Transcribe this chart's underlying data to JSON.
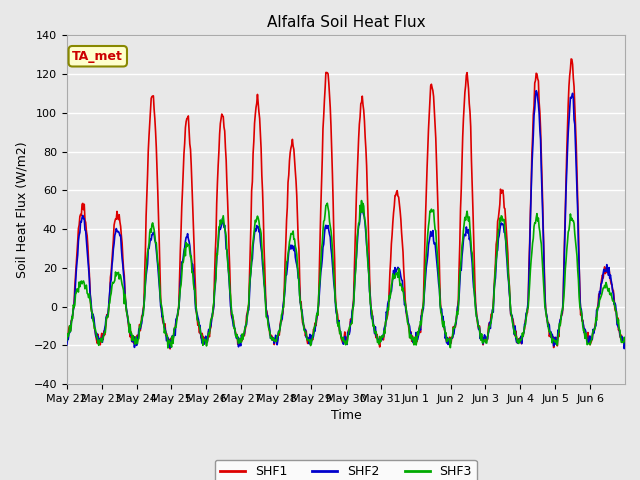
{
  "title": "Alfalfa Soil Heat Flux",
  "ylabel": "Soil Heat Flux (W/m2)",
  "xlabel": "Time",
  "ylim": [
    -40,
    140
  ],
  "annotation": "TA_met",
  "x_tick_labels": [
    "May 22",
    "May 23",
    "May 24",
    "May 25",
    "May 26",
    "May 27",
    "May 28",
    "May 29",
    "May 30",
    "May 31",
    "Jun 1",
    "Jun 2",
    "Jun 3",
    "Jun 4",
    "Jun 5",
    "Jun 6"
  ],
  "legend": [
    {
      "label": "SHF1",
      "color": "#dd0000"
    },
    {
      "label": "SHF2",
      "color": "#0000cc"
    },
    {
      "label": "SHF3",
      "color": "#00aa00"
    }
  ],
  "fig_facecolor": "#e8e8e8",
  "ax_facecolor": "#e8e8e8",
  "grid_color": "#ffffff",
  "shf1_day_peaks": [
    52,
    48,
    109,
    97,
    100,
    107,
    85,
    122,
    106,
    60,
    114,
    119,
    59,
    120,
    126,
    20
  ],
  "shf2_day_peaks": [
    46,
    40,
    38,
    36,
    44,
    42,
    32,
    42,
    50,
    20,
    38,
    40,
    43,
    110,
    110,
    20
  ],
  "shf3_day_peaks": [
    12,
    18,
    42,
    32,
    46,
    46,
    38,
    52,
    52,
    18,
    50,
    48,
    47,
    46,
    46,
    10
  ],
  "night_trough": -18,
  "linewidth": 1.2,
  "title_fontsize": 11,
  "tick_fontsize": 8,
  "label_fontsize": 9,
  "legend_fontsize": 9
}
